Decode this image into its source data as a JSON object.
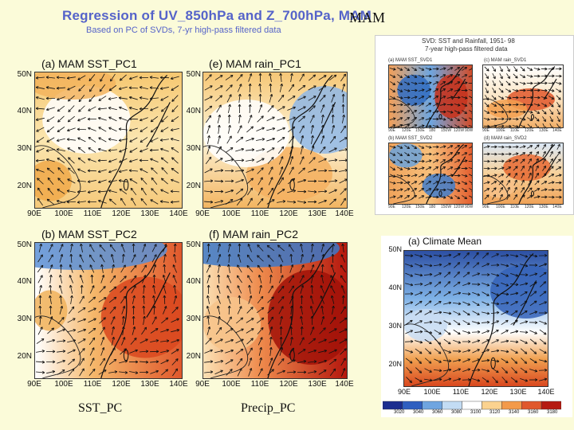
{
  "header": {
    "title": "Regression of UV_850hPa and Z_700hPa, MAM",
    "subtitle": "Based on PC of SVDs, 7-yr high-pass filtered data",
    "season": "MAM"
  },
  "bottom_labels": {
    "sst": "SST_PC",
    "precip": "Precip_PC"
  },
  "axes": {
    "lat_labels": [
      "50N",
      "40N",
      "30N",
      "20N"
    ],
    "lon_labels": [
      "90E",
      "100E",
      "110E",
      "120E",
      "130E",
      "140E"
    ]
  },
  "panels": [
    {
      "id": "a",
      "title": "(a)  MAM  SST_PC1"
    },
    {
      "id": "e",
      "title": "(e)  MAM  rain_PC1"
    },
    {
      "id": "b",
      "title": "(b)  MAM  SST_PC2"
    },
    {
      "id": "f",
      "title": "(f)  MAM  rain_PC2"
    }
  ],
  "inset": {
    "title_line1": "SVD: SST and Rainfall, 1951- 98",
    "title_line2": "7-year high-pass filtered data",
    "maps": [
      {
        "title": "(a) MAM SST_SVD1"
      },
      {
        "title": "(c) MAM rain_SVD1"
      },
      {
        "title": "(b) MAM SST_SVD2"
      },
      {
        "title": "(d) MAM rain_SVD2"
      }
    ],
    "sst_lon_labels": [
      "90E",
      "120E",
      "150E",
      "180",
      "150W",
      "120W",
      "90W"
    ],
    "rain_lon_labels": [
      "90E",
      "100E",
      "110E",
      "120E",
      "130E",
      "140E"
    ]
  },
  "climate": {
    "title": "(a)  Climate  Mean",
    "lat_labels": [
      "50N",
      "40N",
      "30N",
      "20N"
    ],
    "lon_labels": [
      "90E",
      "100E",
      "110E",
      "120E",
      "130E",
      "140E"
    ],
    "colorbar_labels": [
      "3020",
      "3040",
      "3060",
      "3080",
      "3100",
      "3120",
      "3140",
      "3160",
      "3180"
    ]
  }
}
